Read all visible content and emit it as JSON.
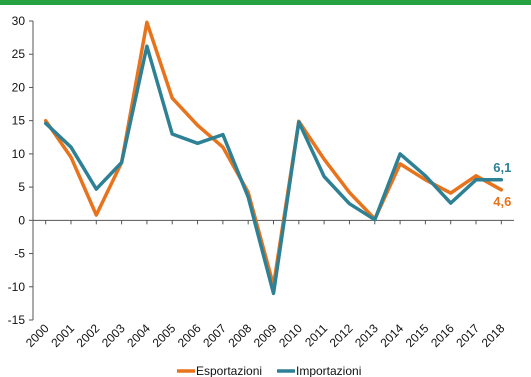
{
  "chart_data": {
    "type": "line",
    "x": [
      "2000",
      "2001",
      "2002",
      "2003",
      "2004",
      "2005",
      "2006",
      "2007",
      "2008",
      "2009",
      "2010",
      "2011",
      "2012",
      "2013",
      "2014",
      "2015",
      "2016",
      "2017",
      "2018"
    ],
    "ylim": [
      -15,
      30
    ],
    "yticks": [
      "30",
      "25",
      "20",
      "15",
      "10",
      "5",
      "0",
      "-5",
      "-10",
      "-15"
    ],
    "grid": false,
    "legend": "bottom",
    "series": [
      {
        "name": "Esportazioni",
        "color": "#e8731d",
        "values": [
          15.0,
          9.5,
          0.8,
          8.7,
          29.8,
          18.4,
          14.3,
          11.0,
          4.2,
          -9.8,
          14.9,
          9.2,
          4.2,
          0.2,
          8.5,
          6.1,
          4.1,
          6.7,
          4.6
        ],
        "end_label": "4,6"
      },
      {
        "name": "Importazioni",
        "color": "#2e8195",
        "values": [
          14.6,
          11.0,
          4.7,
          8.7,
          26.2,
          13.0,
          11.6,
          12.9,
          3.5,
          -11.0,
          14.8,
          6.6,
          2.5,
          0.1,
          10.0,
          6.7,
          2.6,
          6.1,
          6.1
        ],
        "end_label": "6,1"
      }
    ]
  }
}
